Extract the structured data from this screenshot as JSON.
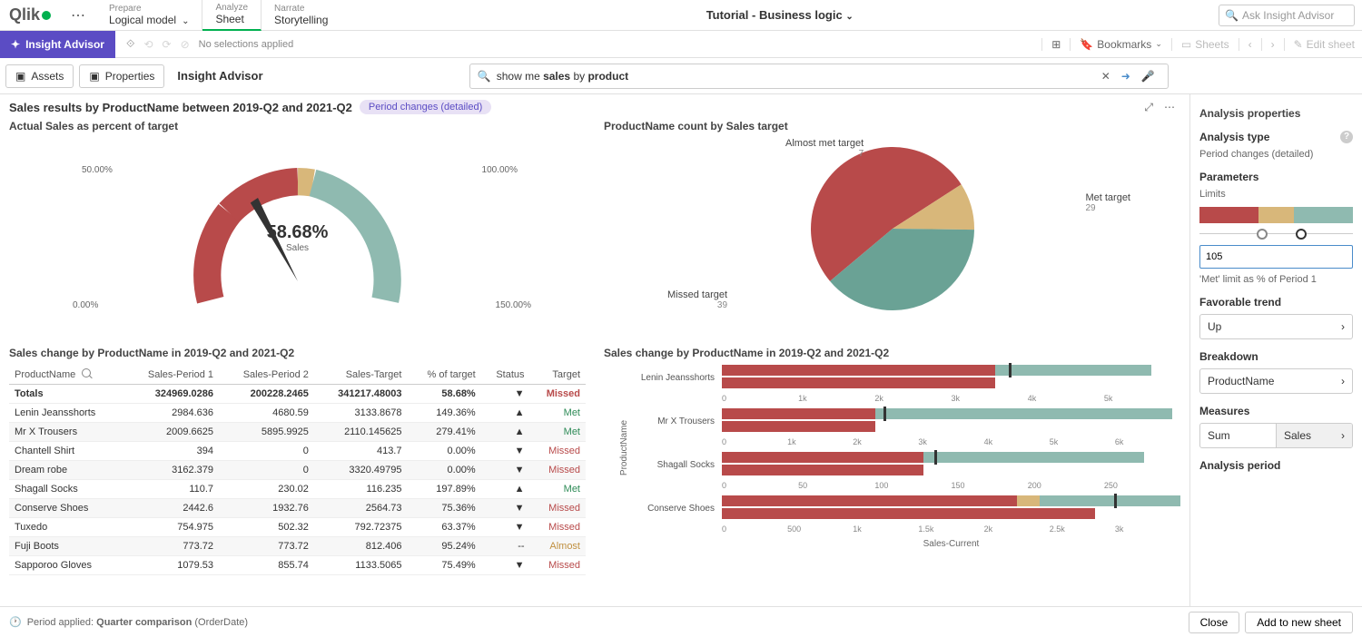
{
  "colors": {
    "red": "#b84a4a",
    "tan": "#d8b77a",
    "green": "#8fbab0",
    "green_dark": "#6aa295",
    "purple": "#5b4cc4"
  },
  "topbar": {
    "nav1_small": "Prepare",
    "nav1_main": "Logical model",
    "nav2_small": "Analyze",
    "nav2_main": "Sheet",
    "nav3_small": "Narrate",
    "nav3_main": "Storytelling",
    "title": "Tutorial - Business logic",
    "ask_placeholder": "Ask Insight Advisor"
  },
  "toolbar": {
    "insight": "Insight Advisor",
    "nosel": "No selections applied",
    "bookmarks": "Bookmarks",
    "sheets": "Sheets",
    "edit": "Edit sheet"
  },
  "subbar": {
    "assets": "Assets",
    "properties": "Properties",
    "title": "Insight Advisor",
    "search_pre": "show me ",
    "search_b1": "sales",
    "search_mid": " by ",
    "search_b2": "product"
  },
  "results": {
    "title": "Sales results by ProductName between 2019-Q2 and 2021-Q2",
    "pill": "Period changes (detailed)"
  },
  "gauge": {
    "title": "Actual Sales as percent of target",
    "value": "58.68%",
    "sublabel": "Sales",
    "l0": "0.00%",
    "l50": "50.00%",
    "l100": "100.00%",
    "l150": "150.00%"
  },
  "pie": {
    "title": "ProductName count by Sales target",
    "slices": [
      {
        "label": "Missed target",
        "value": 39,
        "pct": 52.0
      },
      {
        "label": "Almost met target",
        "value": 7,
        "pct": 9.3
      },
      {
        "label": "Met target",
        "value": 29,
        "pct": 38.7
      }
    ]
  },
  "table": {
    "title": "Sales change by ProductName in 2019-Q2 and 2021-Q2",
    "cols": [
      "ProductName",
      "Sales-Period 1",
      "Sales-Period 2",
      "Sales-Target",
      "% of target",
      "Status",
      "Target"
    ],
    "totals": [
      "Totals",
      "324969.0286",
      "200228.2465",
      "341217.48003",
      "58.68%",
      "▼",
      "Missed"
    ],
    "rows": [
      [
        "Lenin Jeansshorts",
        "2984.636",
        "4680.59",
        "3133.8678",
        "149.36%",
        "▲",
        "Met"
      ],
      [
        "Mr X Trousers",
        "2009.6625",
        "5895.9925",
        "2110.145625",
        "279.41%",
        "▲",
        "Met"
      ],
      [
        "Chantell Shirt",
        "394",
        "0",
        "413.7",
        "0.00%",
        "▼",
        "Missed"
      ],
      [
        "Dream robe",
        "3162.379",
        "0",
        "3320.49795",
        "0.00%",
        "▼",
        "Missed"
      ],
      [
        "Shagall Socks",
        "110.7",
        "230.02",
        "116.235",
        "197.89%",
        "▲",
        "Met"
      ],
      [
        "Conserve Shoes",
        "2442.6",
        "1932.76",
        "2564.73",
        "75.36%",
        "▼",
        "Missed"
      ],
      [
        "Tuxedo",
        "754.975",
        "502.32",
        "792.72375",
        "63.37%",
        "▼",
        "Missed"
      ],
      [
        "Fuji Boots",
        "773.72",
        "773.72",
        "812.406",
        "95.24%",
        "--",
        "Almost"
      ],
      [
        "Sapporoo Gloves",
        "1079.53",
        "855.74",
        "1133.5065",
        "75.49%",
        "▼",
        "Missed"
      ]
    ]
  },
  "bars": {
    "title": "Sales change by ProductName in 2019-Q2 and 2021-Q2",
    "ylabel": "ProductName",
    "xlabel": "Sales-Current",
    "items": [
      {
        "name": "Lenin Jeansshorts",
        "p1": 2984,
        "p2": 4680,
        "target": 3133,
        "max": 5000,
        "axis": [
          "0",
          "1k",
          "2k",
          "3k",
          "4k",
          "5k"
        ]
      },
      {
        "name": "Mr X Trousers",
        "p1": 2009,
        "p2": 5895,
        "target": 2110,
        "max": 6000,
        "axis": [
          "0",
          "1k",
          "2k",
          "3k",
          "4k",
          "5k",
          "6k"
        ]
      },
      {
        "name": "Shagall Socks",
        "p1": 110,
        "p2": 230,
        "target": 116,
        "max": 250,
        "axis": [
          "0",
          "50",
          "100",
          "150",
          "200",
          "250"
        ]
      },
      {
        "name": "Conserve Shoes",
        "p1": 2442,
        "p2": 1932,
        "target": 2564,
        "max": 3000,
        "axis": [
          "0",
          "500",
          "1k",
          "1.5k",
          "2k",
          "2.5k",
          "3k"
        ]
      }
    ]
  },
  "panel": {
    "header": "Analysis properties",
    "type_label": "Analysis type",
    "type_value": "Period changes (detailed)",
    "params": "Parameters",
    "limits": "Limits",
    "limit_input": "105",
    "limit_help": "'Met' limit as % of Period 1",
    "trend_label": "Favorable trend",
    "trend_value": "Up",
    "breakdown_label": "Breakdown",
    "breakdown_value": "ProductName",
    "measures_label": "Measures",
    "measures_sum": "Sum",
    "measures_val": "Sales",
    "period_label": "Analysis period"
  },
  "footer": {
    "period_pre": "Period applied:",
    "period_val": "Quarter comparison",
    "period_post": "(OrderDate)",
    "close": "Close",
    "add": "Add to new sheet"
  }
}
